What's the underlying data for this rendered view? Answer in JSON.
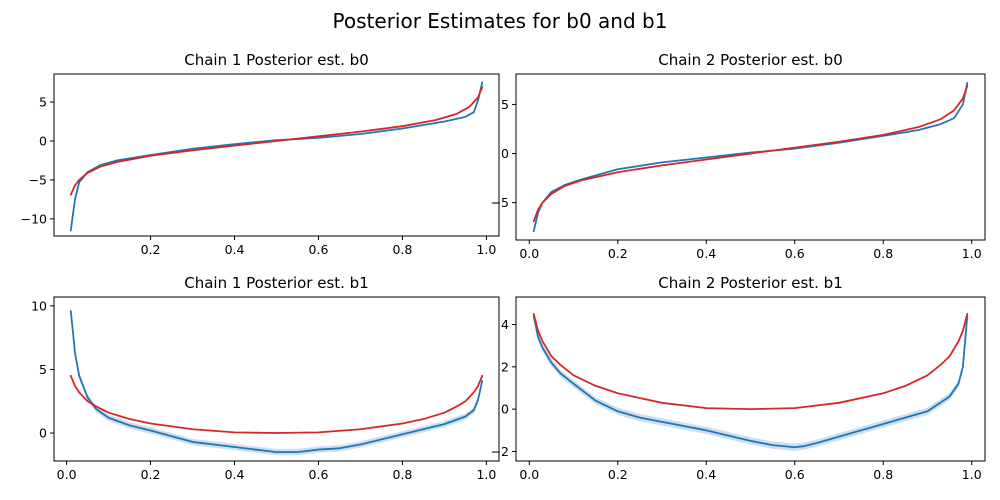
{
  "figure": {
    "suptitle": "Posterior Estimates for b0 and b1"
  },
  "colors": {
    "estimate_line": "#1f77b4",
    "estimate_band": "#aec7e8",
    "reference_line": "#d62728",
    "axes": "#000000",
    "background": "#ffffff"
  },
  "chart_data": [
    {
      "type": "line",
      "title": "Chain 1 Posterior est. b0",
      "xlim": [
        -0.03,
        1.03
      ],
      "ylim": [
        -12.2,
        8.6
      ],
      "xticks": [
        0.2,
        0.4,
        0.6,
        0.8,
        1.0
      ],
      "xtick_labels": [
        "0.2",
        "0.4",
        "0.6",
        "0.8",
        "1.0"
      ],
      "yticks": [
        -10,
        -5,
        0,
        5
      ],
      "ytick_labels": [
        "−10",
        "−5",
        "0",
        "5"
      ],
      "grid": false,
      "series": [
        {
          "role": "estimate",
          "color": "#1f77b4",
          "x": [
            0.01,
            0.02,
            0.03,
            0.05,
            0.08,
            0.12,
            0.2,
            0.3,
            0.4,
            0.5,
            0.6,
            0.7,
            0.8,
            0.9,
            0.95,
            0.97,
            0.98,
            0.99
          ],
          "y": [
            -11.5,
            -7.5,
            -5.3,
            -4.0,
            -3.1,
            -2.5,
            -1.8,
            -1.0,
            -0.4,
            0.1,
            0.4,
            0.9,
            1.6,
            2.5,
            3.1,
            3.7,
            5.2,
            7.5
          ]
        },
        {
          "role": "reference",
          "color": "#d62728",
          "x": [
            0.01,
            0.02,
            0.03,
            0.05,
            0.08,
            0.12,
            0.2,
            0.3,
            0.4,
            0.5,
            0.6,
            0.7,
            0.8,
            0.88,
            0.93,
            0.96,
            0.98,
            0.99
          ],
          "y": [
            -6.9,
            -5.7,
            -5.0,
            -4.1,
            -3.3,
            -2.7,
            -1.9,
            -1.2,
            -0.6,
            0.0,
            0.6,
            1.2,
            1.9,
            2.7,
            3.5,
            4.4,
            5.6,
            6.9
          ]
        }
      ]
    },
    {
      "type": "line",
      "title": "Chain 2 Posterior est. b0",
      "xlim": [
        -0.03,
        1.03
      ],
      "ylim": [
        -8.8,
        8.1
      ],
      "xticks": [
        0.0,
        0.2,
        0.4,
        0.6,
        0.8,
        1.0
      ],
      "xtick_labels": [
        "0.0",
        "0.2",
        "0.4",
        "0.6",
        "0.8",
        "1.0"
      ],
      "yticks": [
        -5,
        0,
        5
      ],
      "ytick_labels": [
        "−5",
        "0",
        "5"
      ],
      "grid": false,
      "series": [
        {
          "role": "estimate",
          "color": "#1f77b4",
          "x": [
            0.01,
            0.02,
            0.03,
            0.05,
            0.08,
            0.12,
            0.2,
            0.3,
            0.4,
            0.5,
            0.6,
            0.7,
            0.8,
            0.88,
            0.93,
            0.96,
            0.98,
            0.99
          ],
          "y": [
            -7.9,
            -6.0,
            -5.0,
            -3.9,
            -3.2,
            -2.6,
            -1.6,
            -0.9,
            -0.4,
            0.1,
            0.5,
            1.1,
            1.8,
            2.4,
            3.0,
            3.6,
            5.0,
            7.2
          ]
        },
        {
          "role": "reference",
          "color": "#d62728",
          "x": [
            0.01,
            0.02,
            0.03,
            0.05,
            0.08,
            0.12,
            0.2,
            0.3,
            0.4,
            0.5,
            0.6,
            0.7,
            0.8,
            0.88,
            0.93,
            0.96,
            0.98,
            0.99
          ],
          "y": [
            -6.9,
            -5.7,
            -5.0,
            -4.1,
            -3.3,
            -2.7,
            -1.9,
            -1.2,
            -0.6,
            0.0,
            0.6,
            1.2,
            1.9,
            2.7,
            3.5,
            4.4,
            5.6,
            6.9
          ]
        }
      ]
    },
    {
      "type": "line",
      "title": "Chain 1 Posterior est. b1",
      "xlim": [
        -0.03,
        1.03
      ],
      "ylim": [
        -2.2,
        10.7
      ],
      "xticks": [
        0.0,
        0.2,
        0.4,
        0.6,
        0.8,
        1.0
      ],
      "xtick_labels": [
        "0.0",
        "0.2",
        "0.4",
        "0.6",
        "0.8",
        "1.0"
      ],
      "yticks": [
        0,
        5,
        10
      ],
      "ytick_labels": [
        "0",
        "5",
        "10"
      ],
      "grid": false,
      "series": [
        {
          "role": "estimate",
          "color": "#1f77b4",
          "band_halfwidth": 0.25,
          "x": [
            0.01,
            0.015,
            0.02,
            0.03,
            0.05,
            0.07,
            0.1,
            0.15,
            0.2,
            0.3,
            0.4,
            0.45,
            0.5,
            0.55,
            0.6,
            0.65,
            0.7,
            0.8,
            0.9,
            0.95,
            0.97,
            0.98,
            0.99
          ],
          "y": [
            9.6,
            8.0,
            6.3,
            4.5,
            2.8,
            1.9,
            1.2,
            0.6,
            0.2,
            -0.7,
            -1.1,
            -1.3,
            -1.5,
            -1.5,
            -1.3,
            -1.2,
            -0.9,
            -0.1,
            0.7,
            1.3,
            1.8,
            2.6,
            4.1
          ]
        },
        {
          "role": "reference",
          "color": "#d62728",
          "x": [
            0.01,
            0.02,
            0.03,
            0.05,
            0.07,
            0.1,
            0.15,
            0.2,
            0.3,
            0.4,
            0.5,
            0.6,
            0.7,
            0.8,
            0.85,
            0.9,
            0.93,
            0.95,
            0.97,
            0.98,
            0.99
          ],
          "y": [
            4.5,
            3.7,
            3.2,
            2.5,
            2.1,
            1.6,
            1.1,
            0.75,
            0.3,
            0.05,
            0.0,
            0.05,
            0.3,
            0.75,
            1.1,
            1.6,
            2.1,
            2.5,
            3.2,
            3.7,
            4.5
          ]
        }
      ]
    },
    {
      "type": "line",
      "title": "Chain 2 Posterior est. b1",
      "xlim": [
        -0.03,
        1.03
      ],
      "ylim": [
        -2.45,
        5.3
      ],
      "xticks": [
        0.0,
        0.2,
        0.4,
        0.6,
        0.8,
        1.0
      ],
      "xtick_labels": [
        "0.0",
        "0.2",
        "0.4",
        "0.6",
        "0.8",
        "1.0"
      ],
      "yticks": [
        -2,
        0,
        2,
        4
      ],
      "ytick_labels": [
        "−2",
        "0",
        "2",
        "4"
      ],
      "grid": false,
      "series": [
        {
          "role": "estimate",
          "color": "#1f77b4",
          "band_halfwidth": 0.17,
          "x": [
            0.01,
            0.02,
            0.03,
            0.05,
            0.07,
            0.1,
            0.15,
            0.2,
            0.25,
            0.3,
            0.4,
            0.5,
            0.55,
            0.6,
            0.62,
            0.65,
            0.7,
            0.8,
            0.9,
            0.95,
            0.97,
            0.98,
            0.99
          ],
          "y": [
            4.4,
            3.4,
            2.9,
            2.2,
            1.7,
            1.2,
            0.4,
            -0.1,
            -0.4,
            -0.6,
            -1.0,
            -1.5,
            -1.7,
            -1.8,
            -1.75,
            -1.6,
            -1.3,
            -0.7,
            -0.1,
            0.6,
            1.2,
            2.0,
            4.4
          ]
        },
        {
          "role": "reference",
          "color": "#d62728",
          "x": [
            0.01,
            0.02,
            0.03,
            0.05,
            0.07,
            0.1,
            0.15,
            0.2,
            0.3,
            0.4,
            0.5,
            0.6,
            0.7,
            0.8,
            0.85,
            0.9,
            0.93,
            0.95,
            0.97,
            0.98,
            0.99
          ],
          "y": [
            4.5,
            3.7,
            3.2,
            2.5,
            2.1,
            1.6,
            1.1,
            0.75,
            0.3,
            0.05,
            0.0,
            0.05,
            0.3,
            0.75,
            1.1,
            1.6,
            2.1,
            2.5,
            3.2,
            3.7,
            4.5
          ]
        }
      ]
    }
  ]
}
